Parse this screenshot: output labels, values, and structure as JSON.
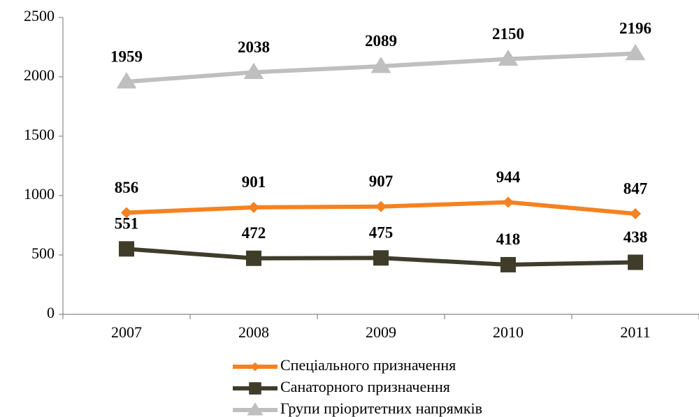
{
  "chart_data": {
    "type": "line",
    "categories": [
      "2007",
      "2008",
      "2009",
      "2010",
      "2011"
    ],
    "series": [
      {
        "name": "Спеціального призначення",
        "color": "#f58220",
        "marker": "diamond",
        "values": [
          856,
          901,
          907,
          944,
          847
        ]
      },
      {
        "name": "Санаторного призначення",
        "color": "#3f3d2a",
        "marker": "square",
        "values": [
          551,
          472,
          475,
          418,
          438
        ]
      },
      {
        "name": "Групи пріоритетних напрямків",
        "color": "#bfbfbf",
        "marker": "triangle",
        "values": [
          1959,
          2038,
          2089,
          2150,
          2196
        ]
      }
    ],
    "ylim": [
      0,
      2500
    ],
    "yticks": [
      0,
      500,
      1000,
      1500,
      2000,
      2500
    ],
    "grid": false,
    "legend": "bottom"
  }
}
